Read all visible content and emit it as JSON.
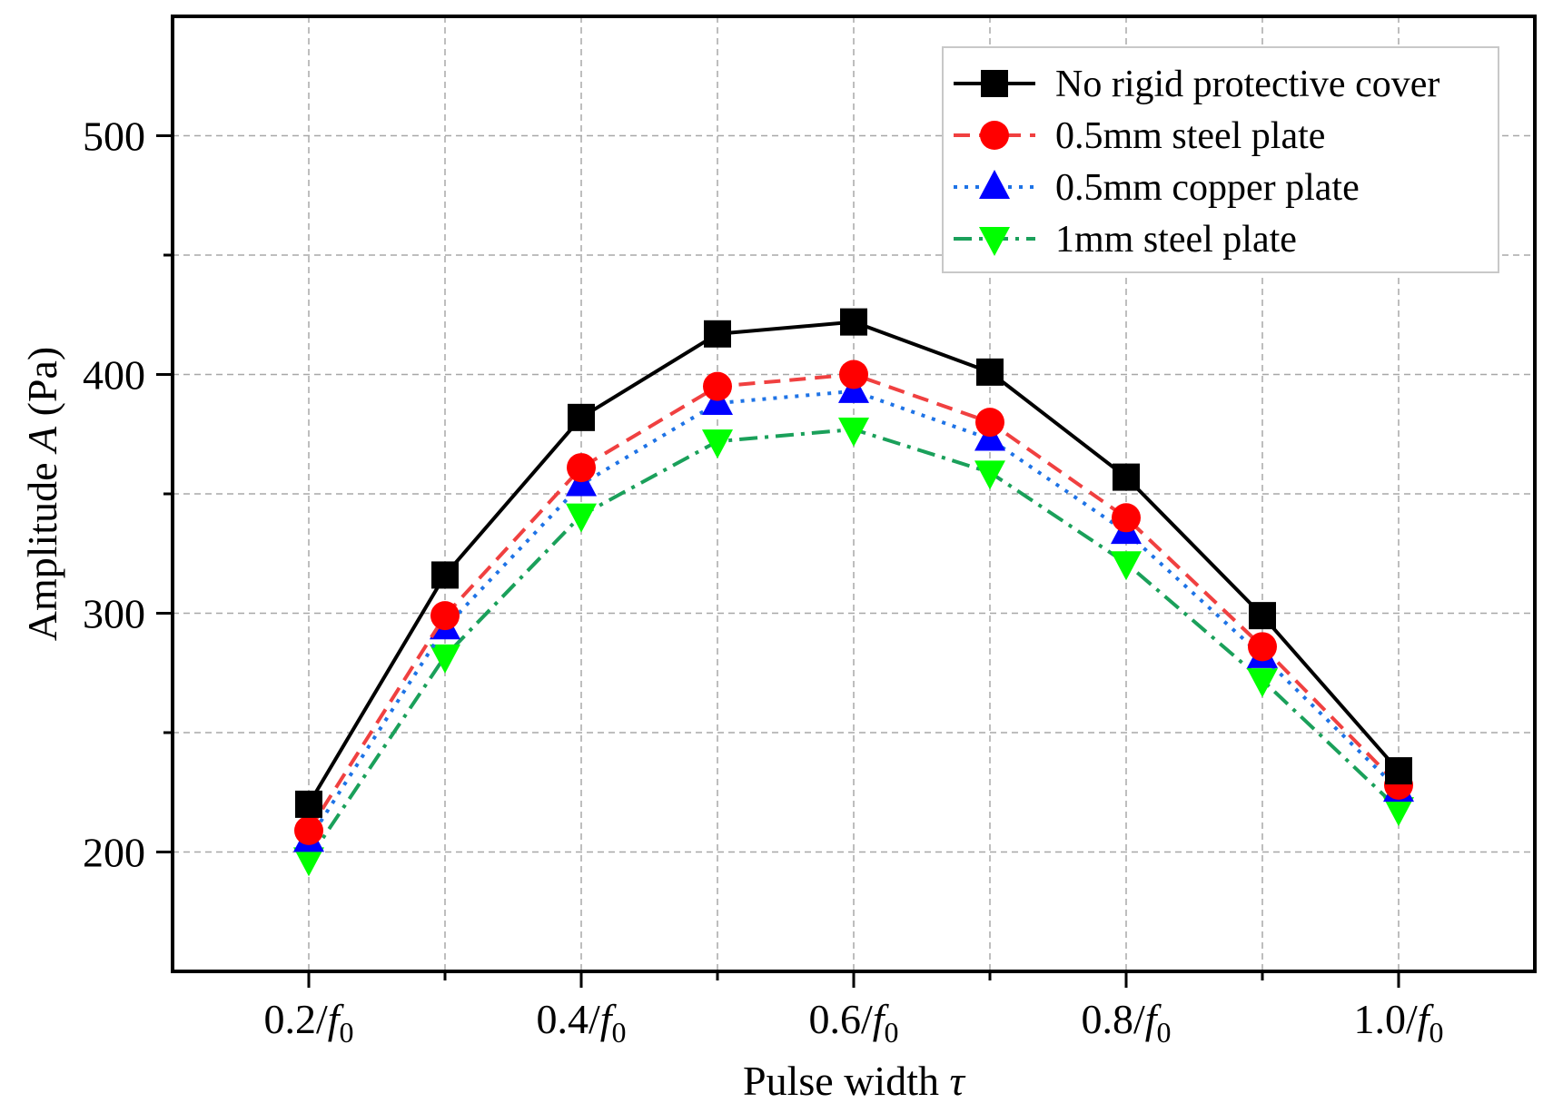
{
  "chart_data": {
    "type": "line",
    "categories": [
      "0.2/f0",
      "0.3/f0",
      "0.4/f0",
      "0.5/f0",
      "0.6/f0",
      "0.7/f0",
      "0.8/f0",
      "0.9/f0",
      "1.0/f0"
    ],
    "x": [
      0.2,
      0.3,
      0.4,
      0.5,
      0.6,
      0.7,
      0.8,
      0.9,
      1.0
    ],
    "x_ticks": [
      {
        "value": 0.2,
        "num": "0.2/",
        "var": "f",
        "sub": "0"
      },
      {
        "value": 0.4,
        "num": "0.4/",
        "var": "f",
        "sub": "0"
      },
      {
        "value": 0.6,
        "num": "0.6/",
        "var": "f",
        "sub": "0"
      },
      {
        "value": 0.8,
        "num": "0.8/",
        "var": "f",
        "sub": "0"
      },
      {
        "value": 1.0,
        "num": "1.0/",
        "var": "f",
        "sub": "0"
      }
    ],
    "y_ticks": [
      200,
      300,
      400,
      500
    ],
    "xlim": [
      0.1,
      1.1
    ],
    "ylim": [
      150,
      550
    ],
    "grid": true,
    "xlabel": {
      "text": "Pulse width ",
      "var": "τ"
    },
    "ylabel": {
      "text": "Amplitude ",
      "var": "A",
      "unit": " (Pa)"
    },
    "legend_position": "top-right",
    "series": [
      {
        "name": "No rigid protective cover",
        "color": "#000000",
        "marker": "square",
        "dash": "solid",
        "values": [
          220,
          316,
          382,
          417,
          422,
          401,
          357,
          299,
          234
        ]
      },
      {
        "name": "0.5mm steel plate",
        "color": "#ff0000",
        "line_color": "#f04040",
        "marker": "circle",
        "dash": "dash",
        "values": [
          209,
          299,
          361,
          395,
          400,
          380,
          340,
          286,
          228
        ]
      },
      {
        "name": "0.5mm copper plate",
        "color": "#0000ff",
        "line_color": "#1e73e6",
        "marker": "triangle-up",
        "dash": "dot",
        "values": [
          205,
          294,
          354,
          388,
          393,
          373,
          334,
          282,
          226
        ]
      },
      {
        "name": "1mm steel plate",
        "color": "#00ff00",
        "line_color": "#1aa05a",
        "marker": "triangle-down",
        "dash": "dashdot",
        "values": [
          197,
          282,
          341,
          372,
          377,
          359,
          321,
          272,
          218
        ]
      }
    ]
  }
}
